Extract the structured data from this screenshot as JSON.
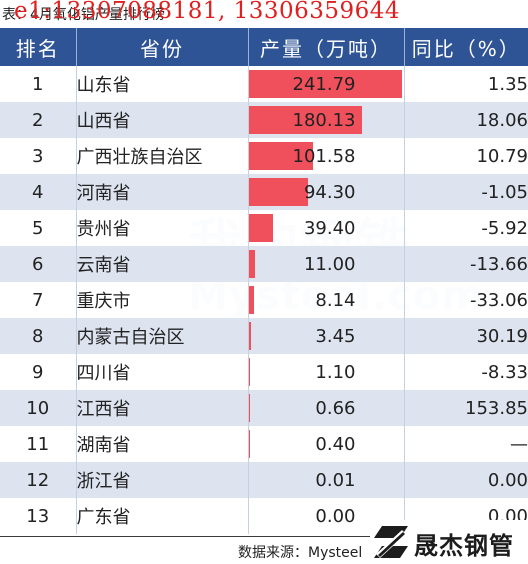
{
  "caption": "表：4月氧化铝产量排行榜",
  "overlay_text": "e1:13307088181, 13306359644",
  "watermark": {
    "cn": "我的钢铁",
    "en": "Mysteel.com"
  },
  "source_text": "数据来源：Mysteel",
  "logo_text": "晟杰钢管",
  "colors": {
    "header_bg": "#2f5496",
    "bar": "#f0505b",
    "row_alt": "#dde4f0",
    "overlay": "#e02020"
  },
  "chart_data": {
    "type": "table",
    "columns": [
      "排名",
      "省份",
      "产量（万吨）",
      "同比（%）"
    ],
    "bar_max": 241.79,
    "rows": [
      {
        "rank": "1",
        "province": "山东省",
        "output": "241.79",
        "yoy": "1.35"
      },
      {
        "rank": "2",
        "province": "山西省",
        "output": "180.13",
        "yoy": "18.06"
      },
      {
        "rank": "3",
        "province": "广西壮族自治区",
        "output": "101.58",
        "yoy": "10.79"
      },
      {
        "rank": "4",
        "province": "河南省",
        "output": "94.30",
        "yoy": "-1.05"
      },
      {
        "rank": "5",
        "province": "贵州省",
        "output": "39.40",
        "yoy": "-5.92"
      },
      {
        "rank": "6",
        "province": "云南省",
        "output": "11.00",
        "yoy": "-13.66"
      },
      {
        "rank": "7",
        "province": "重庆市",
        "output": "8.14",
        "yoy": "-33.06"
      },
      {
        "rank": "8",
        "province": "内蒙古自治区",
        "output": "3.45",
        "yoy": "30.19"
      },
      {
        "rank": "9",
        "province": "四川省",
        "output": "1.10",
        "yoy": "-8.33"
      },
      {
        "rank": "10",
        "province": "江西省",
        "output": "0.66",
        "yoy": "153.85"
      },
      {
        "rank": "11",
        "province": "湖南省",
        "output": "0.40",
        "yoy": "—"
      },
      {
        "rank": "12",
        "province": "浙江省",
        "output": "0.01",
        "yoy": "0.00"
      },
      {
        "rank": "13",
        "province": "广东省",
        "output": "0.00",
        "yoy": "0.00"
      }
    ]
  }
}
